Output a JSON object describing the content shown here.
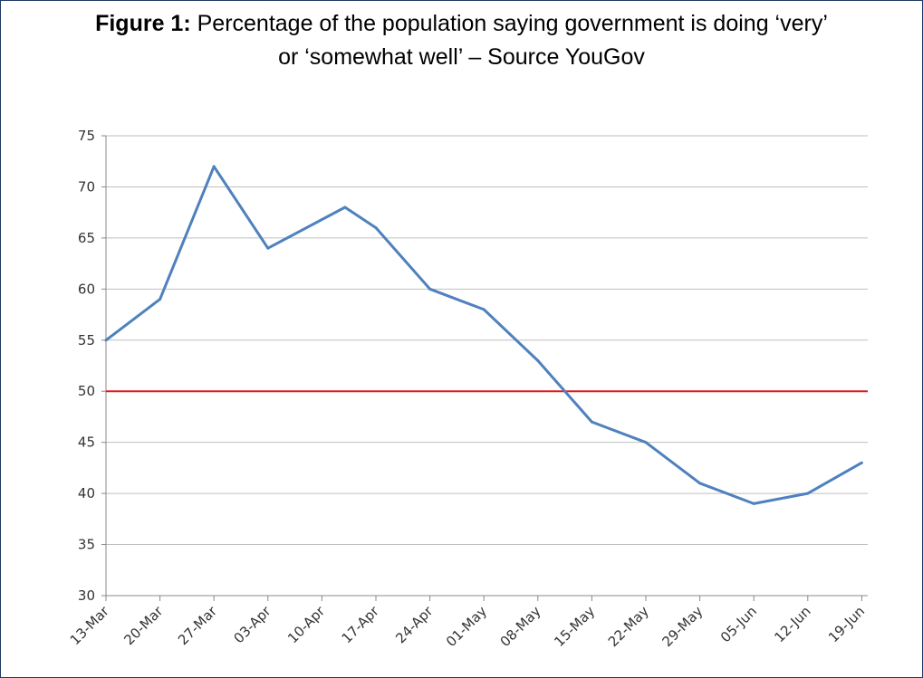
{
  "figure": {
    "label": "Figure 1:",
    "caption_line1": " Percentage of the population saying government is doing ‘very’",
    "caption_line2": "or ‘somewhat well’ – Source YouGov"
  },
  "chart_data": {
    "type": "line",
    "title": "",
    "xlabel": "",
    "ylabel": "",
    "ylim": [
      30,
      75
    ],
    "y_ticks": [
      30,
      35,
      40,
      45,
      50,
      55,
      60,
      65,
      70,
      75
    ],
    "x_tick_labels": [
      "13-Mar",
      "20-Mar",
      "27-Mar",
      "03-Apr",
      "10-Apr",
      "17-Apr",
      "24-Apr",
      "01-May",
      "08-May",
      "15-May",
      "22-May",
      "29-May",
      "05-Jun",
      "12-Jun",
      "19-Jun"
    ],
    "grid": true,
    "legend": "none",
    "series": [
      {
        "color": "#4f81bd",
        "points": [
          {
            "x": "13-Mar",
            "y": 55
          },
          {
            "x": "20-Mar",
            "y": 59
          },
          {
            "x": "27-Mar",
            "y": 72
          },
          {
            "x": "03-Apr",
            "y": 64
          },
          {
            "x": "13-Apr",
            "y": 68
          },
          {
            "x": "17-Apr",
            "y": 66
          },
          {
            "x": "24-Apr",
            "y": 60
          },
          {
            "x": "01-May",
            "y": 58
          },
          {
            "x": "08-May",
            "y": 53
          },
          {
            "x": "15-May",
            "y": 47
          },
          {
            "x": "22-May",
            "y": 45
          },
          {
            "x": "29-May",
            "y": 41
          },
          {
            "x": "05-Jun",
            "y": 39
          },
          {
            "x": "12-Jun",
            "y": 40
          },
          {
            "x": "19-Jun",
            "y": 43
          }
        ]
      }
    ],
    "reference_line": {
      "y": 50,
      "color": "#e31a1c"
    }
  }
}
